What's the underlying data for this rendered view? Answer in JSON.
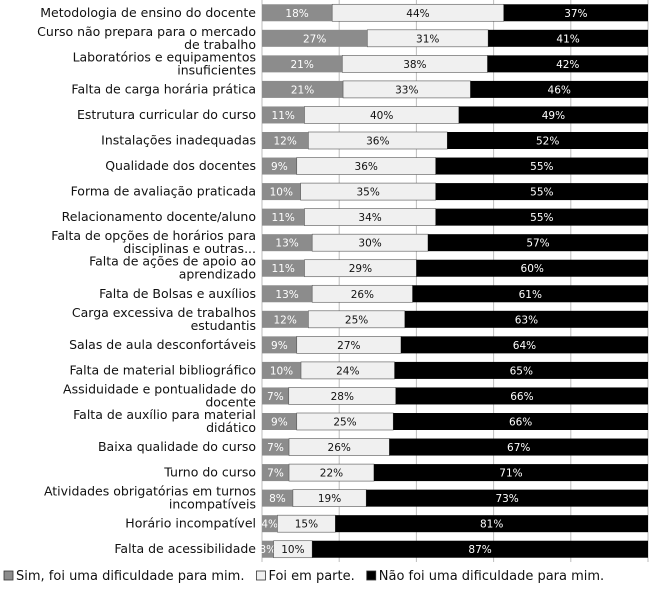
{
  "chart_data": {
    "type": "bar",
    "orientation": "horizontal",
    "stacked": true,
    "title": "",
    "xlabel": "",
    "ylabel": "",
    "xlim": [
      0,
      100
    ],
    "grid": true,
    "legend_position": "bottom",
    "categories": [
      "Metodologia de ensino do docente",
      "Curso não prepara para o mercado de trabalho",
      "Laboratórios e equipamentos insuficientes",
      "Falta de carga horária prática",
      "Estrutura curricular do curso",
      "Instalações inadequadas",
      "Qualidade dos docentes",
      "Forma de avaliação praticada",
      "Relacionamento docente/aluno",
      "Falta de opções de horários para disciplinas e outras...",
      "Falta de ações de apoio ao aprendizado",
      "Falta de Bolsas e auxílios",
      "Carga excessiva de trabalhos estudantis",
      "Salas de aula desconfortáveis",
      "Falta de material bibliográfico",
      "Assiduidade e pontualidade do docente",
      "Falta de auxílio para material didático",
      "Baixa qualidade do curso",
      "Turno do curso",
      "Atividades obrigatórias em turnos incompatíveis",
      "Horário incompatível",
      "Falta de acessibilidade"
    ],
    "series": [
      {
        "name": "Sim, foi uma dificuldade para mim.",
        "color": "#8c8c8c",
        "values": [
          18,
          27,
          21,
          21,
          11,
          12,
          9,
          10,
          11,
          13,
          11,
          13,
          12,
          9,
          10,
          7,
          9,
          7,
          7,
          8,
          4,
          3
        ]
      },
      {
        "name": "Foi em parte.",
        "color": "#f0f0f0",
        "values": [
          44,
          31,
          38,
          33,
          40,
          36,
          36,
          35,
          34,
          30,
          29,
          26,
          25,
          27,
          24,
          28,
          25,
          26,
          22,
          19,
          15,
          10
        ]
      },
      {
        "name": "Não foi uma dificuldade para mim.",
        "color": "#000000",
        "values": [
          37,
          41,
          42,
          46,
          49,
          52,
          55,
          55,
          55,
          57,
          60,
          61,
          63,
          64,
          65,
          66,
          66,
          67,
          71,
          73,
          81,
          87
        ]
      }
    ]
  }
}
